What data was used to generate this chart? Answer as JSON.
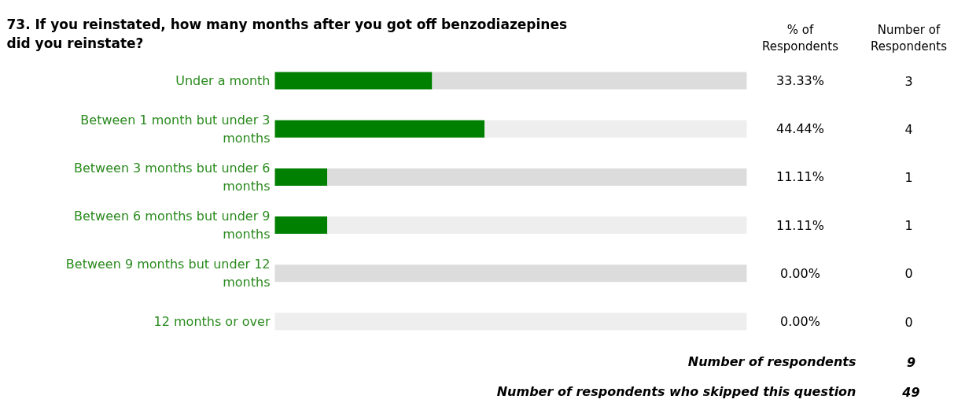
{
  "chart_data": {
    "type": "bar",
    "orientation": "horizontal",
    "stacked": true,
    "title": "73. If you reinstated, how many months after you got off benzodiazepines did you reinstate?",
    "categories": [
      "Under a month",
      "Between 1 month but under 3 months",
      "Between 3 months but under 6 months",
      "Between 6 months but under 9 months",
      "Between 9 months but under 12 months",
      "12 months or over"
    ],
    "series": [
      {
        "color": "#008000",
        "values": [
          33.33,
          44.44,
          11.11,
          11.11,
          0,
          0
        ],
        "value_labels": [
          "33.33%",
          "44.44%",
          "11.11%",
          "11.11%",
          "0.00%",
          "0.00%"
        ]
      },
      {
        "colors": [
          "#dcdcdc",
          "#eeeeee",
          "#dcdcdc",
          "#eeeeee",
          "#dcdcdc",
          "#eeeeee"
        ],
        "values": [
          66.67,
          55.56,
          88.89,
          88.89,
          100,
          100
        ]
      }
    ],
    "xlim": [
      0,
      100
    ],
    "tick_labels": false,
    "annotations": [
      "% of Respondents",
      "Number of Respondents",
      "3",
      "4",
      "1",
      "1",
      "0",
      "0",
      "Number of respondents",
      "9",
      "Number of respondents who skipped this question",
      "49"
    ]
  }
}
